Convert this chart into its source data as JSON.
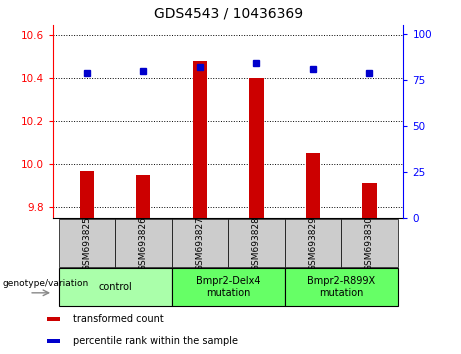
{
  "title": "GDS4543 / 10436369",
  "samples": [
    "GSM693825",
    "GSM693826",
    "GSM693827",
    "GSM693828",
    "GSM693829",
    "GSM693830"
  ],
  "bar_values": [
    9.97,
    9.95,
    10.48,
    10.4,
    10.05,
    9.91
  ],
  "percentile_values": [
    79,
    80,
    82,
    84,
    81,
    79
  ],
  "ylim_left": [
    9.75,
    10.65
  ],
  "ylim_right": [
    0,
    105
  ],
  "yticks_left": [
    9.8,
    10.0,
    10.2,
    10.4,
    10.6
  ],
  "yticks_right": [
    0,
    25,
    50,
    75,
    100
  ],
  "bar_color": "#cc0000",
  "percentile_color": "#0000cc",
  "bar_bottom": 9.75,
  "groups": [
    {
      "label": "control",
      "indices": [
        0,
        1
      ],
      "color": "#aaffaa"
    },
    {
      "label": "Bmpr2-Delx4\nmutation",
      "indices": [
        2,
        3
      ],
      "color": "#66ff66"
    },
    {
      "label": "Bmpr2-R899X\nmutation",
      "indices": [
        4,
        5
      ],
      "color": "#66ff66"
    }
  ],
  "xlabel_group": "genotype/variation",
  "legend_items": [
    {
      "color": "#cc0000",
      "label": "transformed count"
    },
    {
      "color": "#0000cc",
      "label": "percentile rank within the sample"
    }
  ],
  "tick_label_bg": "#cccccc",
  "title_fontsize": 10
}
